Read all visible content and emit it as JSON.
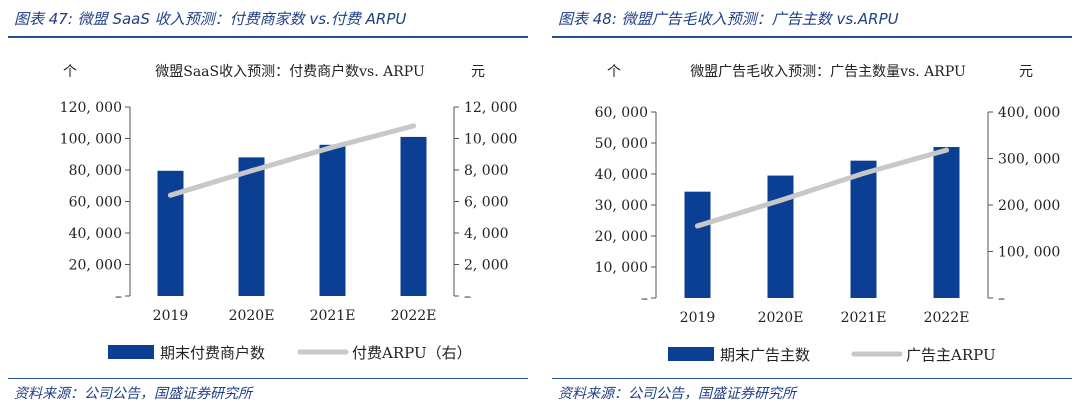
{
  "colors": {
    "bar": "#0b3f94",
    "line": "#c8c8c8",
    "title": "#1f3f87",
    "rule": "#2a4d9b"
  },
  "left": {
    "fig_title": "图表 47:  微盟 SaaS 收入预测：付费商家数 vs.付费 ARPU",
    "source": "资料来源：公司公告，国盛证券研究所",
    "chart_data": {
      "type": "bar",
      "title": "微盟SaaS收入预测：付费商户数vs. ARPU",
      "ylabel_left": "个",
      "ylabel_right": "元",
      "categories": [
        "2019",
        "2020E",
        "2021E",
        "2022E"
      ],
      "ylim_left": [
        0,
        120000
      ],
      "ylim_right": [
        0,
        12000
      ],
      "left_ticks": [
        "–",
        "20, 000",
        "40, 000",
        "60, 000",
        "80, 000",
        "100, 000",
        "120, 000"
      ],
      "right_ticks": [
        "–",
        "2, 000",
        "4, 000",
        "6, 000",
        "8, 000",
        "10, 000",
        "12, 000"
      ],
      "series": [
        {
          "name": "期末付费商户数",
          "kind": "bar",
          "axis": "left",
          "values": [
            79500,
            88000,
            96000,
            101000
          ]
        },
        {
          "name": "付费ARPU（右）",
          "kind": "line",
          "axis": "right",
          "values": [
            6400,
            7950,
            9450,
            10800
          ]
        }
      ]
    }
  },
  "right": {
    "fig_title": "图表 48:  微盟广告毛收入预测：广告主数 vs.ARPU",
    "source": "资料来源：公司公告，国盛证券研究所",
    "chart_data": {
      "type": "bar",
      "title": "微盟广告毛收入预测：广告主数量vs. ARPU",
      "ylabel_left": "个",
      "ylabel_right": "元",
      "categories": [
        "2019",
        "2020E",
        "2021E",
        "2022E"
      ],
      "ylim_left": [
        0,
        60000
      ],
      "ylim_right": [
        0,
        400000
      ],
      "left_ticks": [
        "–",
        "10, 000",
        "20, 000",
        "30, 000",
        "40, 000",
        "50, 000",
        "60, 000"
      ],
      "right_ticks": [
        "–",
        "100, 000",
        "200, 000",
        "300, 000",
        "400, 000"
      ],
      "series": [
        {
          "name": "期末广告主数",
          "kind": "bar",
          "axis": "left",
          "values": [
            34300,
            39500,
            44300,
            48700
          ]
        },
        {
          "name": "广告主ARPU",
          "kind": "line",
          "axis": "right",
          "values": [
            155000,
            210000,
            268000,
            318000
          ]
        }
      ]
    }
  }
}
